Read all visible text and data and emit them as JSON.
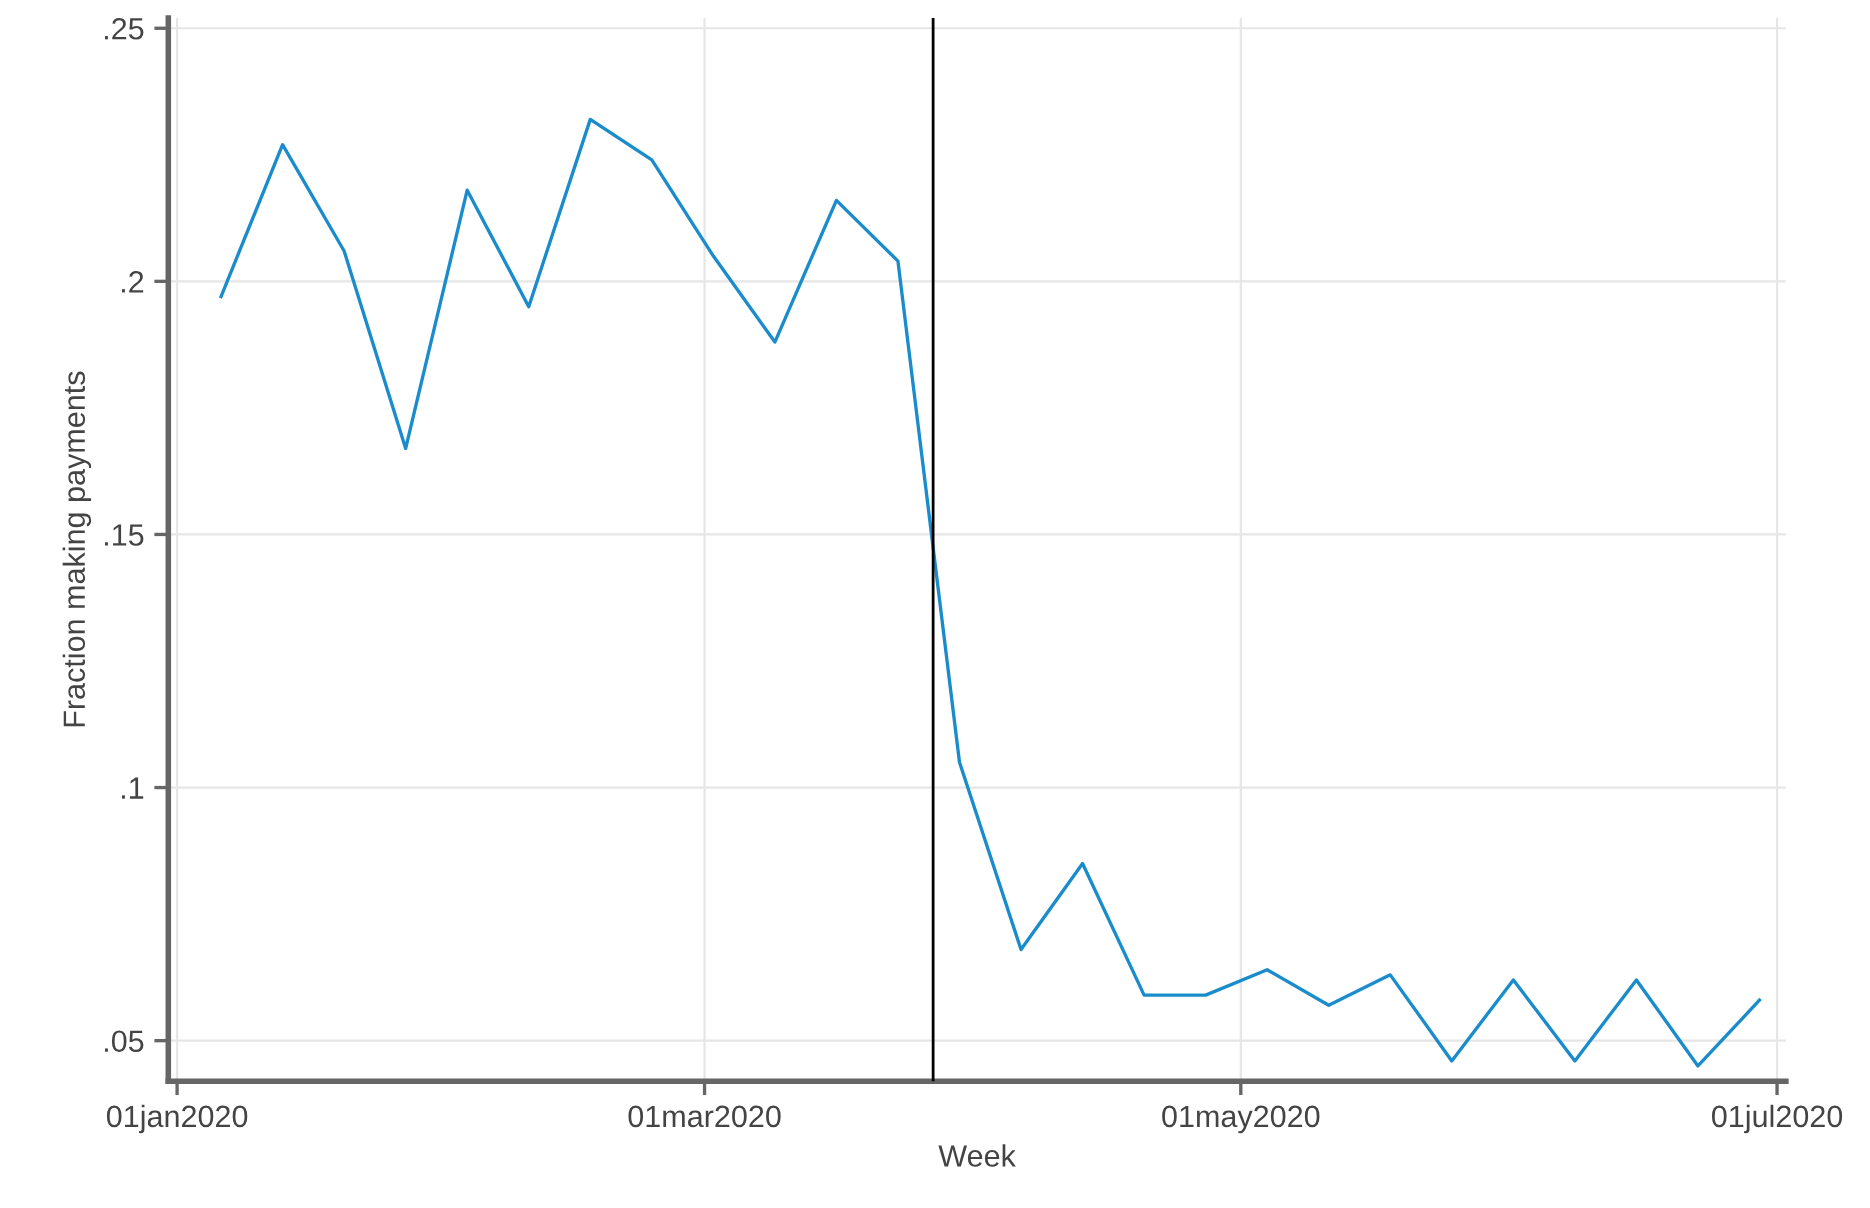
{
  "chart_data": {
    "type": "line",
    "xlabel": "Week",
    "ylabel": "Fraction making payments",
    "x": [
      "2020-01-06",
      "2020-01-13",
      "2020-01-20",
      "2020-01-27",
      "2020-02-03",
      "2020-02-10",
      "2020-02-17",
      "2020-02-24",
      "2020-03-02",
      "2020-03-09",
      "2020-03-16",
      "2020-03-23",
      "2020-03-30",
      "2020-04-06",
      "2020-04-13",
      "2020-04-20",
      "2020-04-27",
      "2020-05-04",
      "2020-05-11",
      "2020-05-18",
      "2020-05-25",
      "2020-06-01",
      "2020-06-08",
      "2020-06-15",
      "2020-06-22",
      "2020-06-29"
    ],
    "series": [
      {
        "color": "#1a8ccc",
        "values": [
          0.197,
          0.227,
          0.206,
          0.167,
          0.218,
          0.195,
          0.232,
          0.224,
          0.205,
          0.188,
          0.216,
          0.204,
          0.105,
          0.068,
          0.085,
          0.059,
          0.059,
          0.064,
          0.057,
          0.063,
          0.046,
          0.062,
          0.046,
          0.062,
          0.045,
          0.058
        ]
      }
    ],
    "xlim": [
      "2019-12-31",
      "2020-07-02"
    ],
    "xticks": [
      {
        "value": "2020-01-01",
        "label": "01jan2020"
      },
      {
        "value": "2020-03-01",
        "label": "01mar2020"
      },
      {
        "value": "2020-05-01",
        "label": "01may2020"
      },
      {
        "value": "2020-07-01",
        "label": "01jul2020"
      }
    ],
    "ylim": [
      0.042,
      0.252
    ],
    "yticks": [
      {
        "value": 0.05,
        "label": ".05"
      },
      {
        "value": 0.1,
        "label": ".1"
      },
      {
        "value": 0.15,
        "label": ".15"
      },
      {
        "value": 0.2,
        "label": ".2"
      },
      {
        "value": 0.25,
        "label": ".25"
      }
    ],
    "ref_lines": [
      {
        "axis": "x",
        "value": "2020-03-27",
        "color": "#000000"
      }
    ],
    "grid": true,
    "legend": false,
    "marker": "none",
    "line_style": "solid"
  }
}
